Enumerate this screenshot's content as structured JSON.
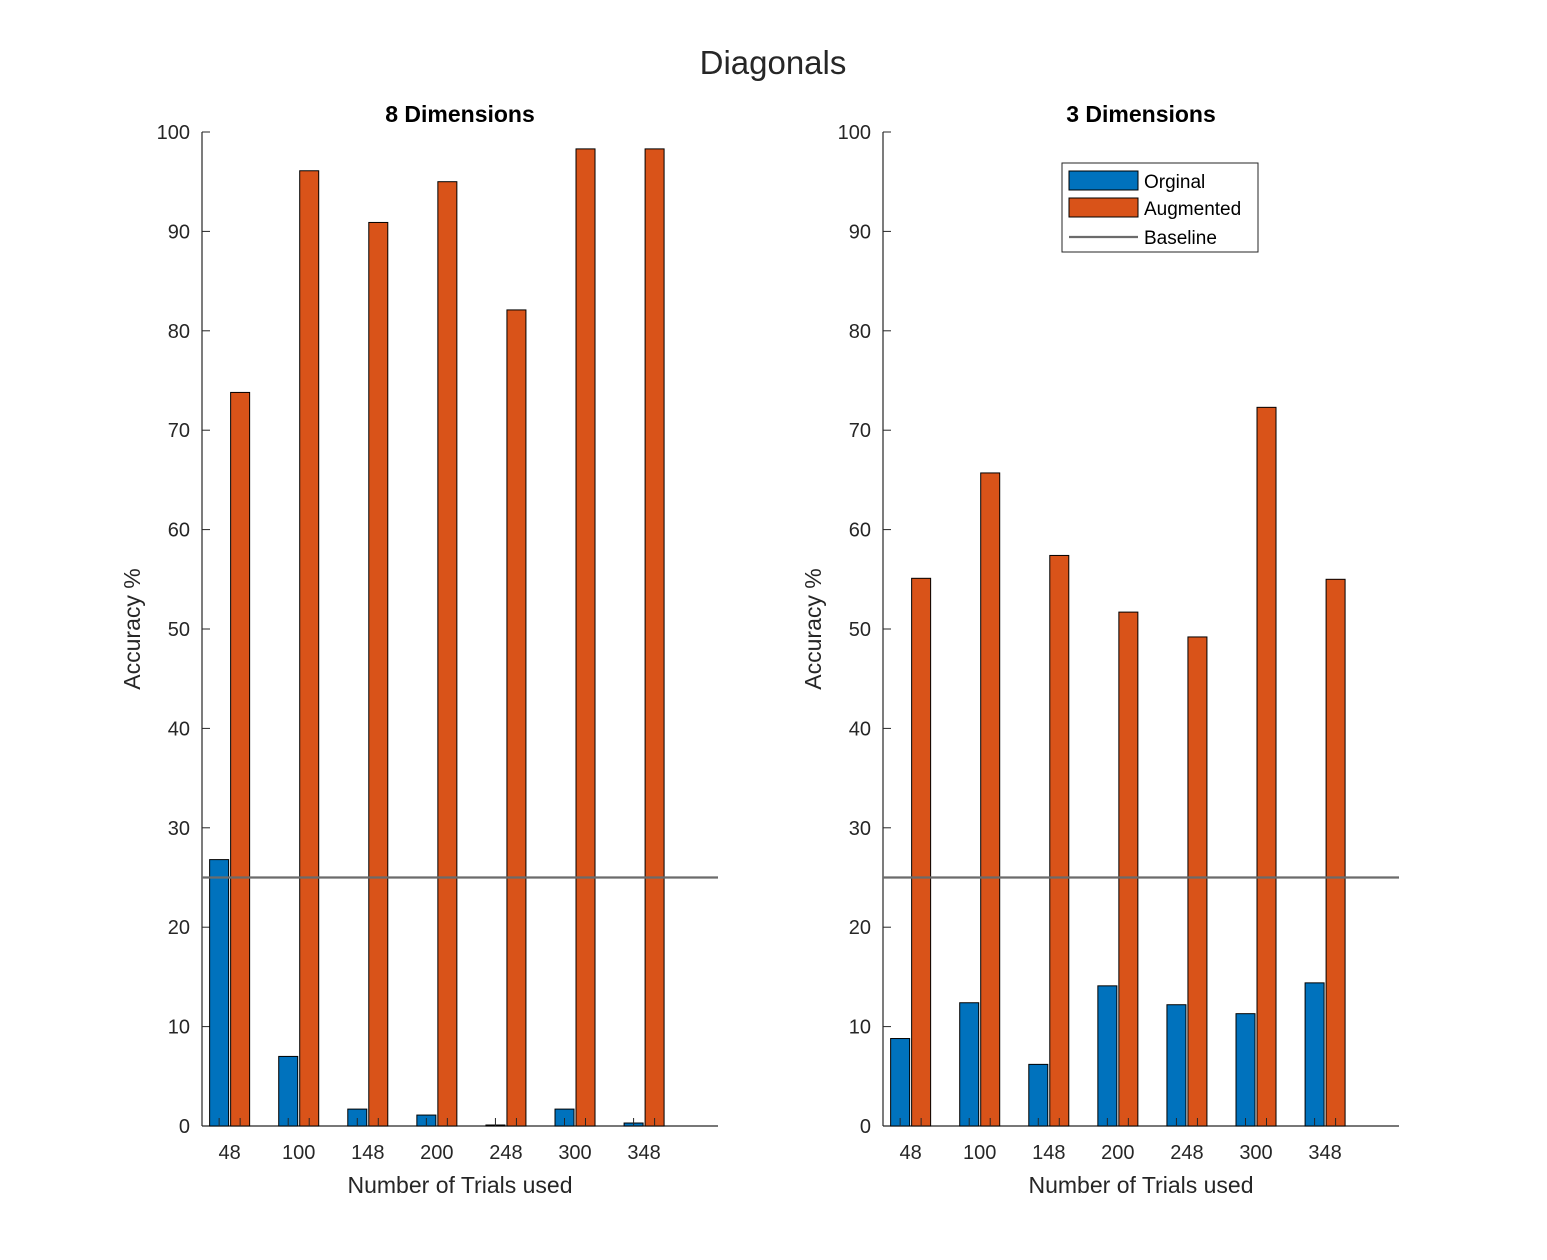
{
  "figure": {
    "title": "Diagonals"
  },
  "legend": {
    "entries": [
      "Orginal",
      "Augmented",
      "Baseline"
    ],
    "placement": "top-center of right subplot"
  },
  "colors": {
    "original": "#0072BD",
    "augmented": "#D95319",
    "baseline": "#6b6b6b",
    "axis": "#262626"
  },
  "chart_data": [
    {
      "type": "bar",
      "title": "8 Dimensions",
      "xlabel": "Number of Trials used",
      "ylabel": "Accuracy %",
      "categories": [
        "48",
        "100",
        "148",
        "200",
        "248",
        "300",
        "348"
      ],
      "ylim": [
        0,
        100
      ],
      "yticks": [
        0,
        10,
        20,
        30,
        40,
        50,
        60,
        70,
        80,
        90,
        100
      ],
      "series": [
        {
          "name": "Orginal",
          "values": [
            26.8,
            7.0,
            1.7,
            1.1,
            0.1,
            1.7,
            0.3
          ]
        },
        {
          "name": "Augmented",
          "values": [
            73.8,
            96.1,
            90.9,
            95.0,
            82.1,
            98.3,
            98.3
          ]
        }
      ],
      "baseline": {
        "name": "Baseline",
        "value": 25
      },
      "grid": false
    },
    {
      "type": "bar",
      "title": "3 Dimensions",
      "xlabel": "Number of Trials used",
      "ylabel": "Accuracy %",
      "categories": [
        "48",
        "100",
        "148",
        "200",
        "248",
        "300",
        "348"
      ],
      "ylim": [
        0,
        100
      ],
      "yticks": [
        0,
        10,
        20,
        30,
        40,
        50,
        60,
        70,
        80,
        90,
        100
      ],
      "series": [
        {
          "name": "Orginal",
          "values": [
            8.8,
            12.4,
            6.2,
            14.1,
            12.2,
            11.3,
            14.4
          ]
        },
        {
          "name": "Augmented",
          "values": [
            55.1,
            65.7,
            57.4,
            51.7,
            49.2,
            72.3,
            55.0
          ]
        }
      ],
      "baseline": {
        "name": "Baseline",
        "value": 25
      },
      "grid": false
    }
  ]
}
